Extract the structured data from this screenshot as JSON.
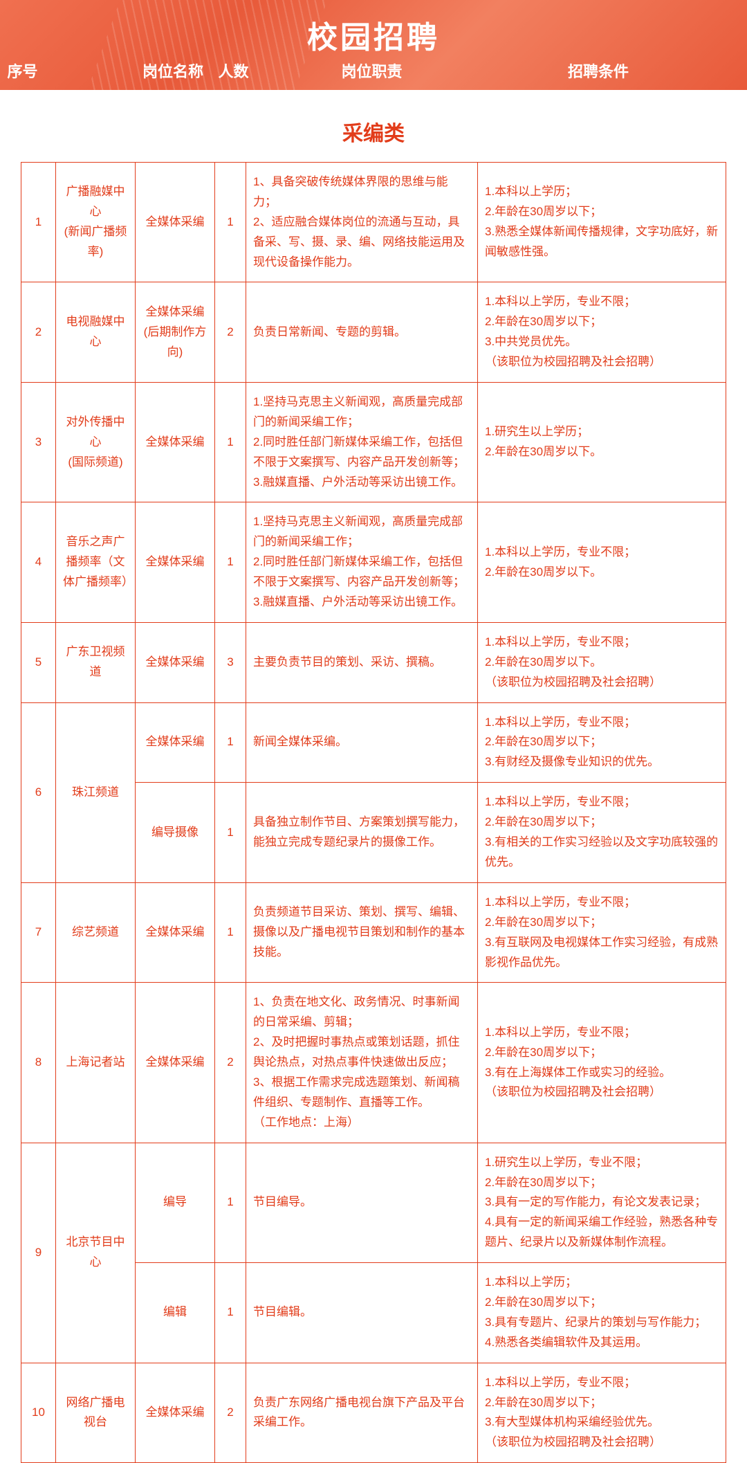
{
  "header": {
    "title": "校园招聘",
    "columns": [
      "序号",
      "岗位名称",
      "人数",
      "岗位职责",
      "招聘条件"
    ]
  },
  "category": "采编类",
  "colors": {
    "primary": "#e23c1a",
    "header_bg": "#e85a3a",
    "white": "#ffffff"
  },
  "rows": [
    {
      "seq": "1",
      "dept": "广播融媒中心\n(新闻广播频率)",
      "posts": [
        {
          "name": "全媒体采编",
          "count": "1",
          "duty": "1、具备突破传统媒体界限的思维与能力；\n2、适应融合媒体岗位的流通与互动，具备采、写、摄、录、编、网络技能运用及现代设备操作能力。",
          "req": "1.本科以上学历；\n2.年龄在30周岁以下；\n3.熟悉全媒体新闻传播规律，文字功底好，新闻敏感性强。"
        }
      ]
    },
    {
      "seq": "2",
      "dept": "电视融媒中心",
      "posts": [
        {
          "name": "全媒体采编\n(后期制作方向)",
          "count": "2",
          "duty": "负责日常新闻、专题的剪辑。",
          "req": "1.本科以上学历，专业不限；\n2.年龄在30周岁以下；\n3.中共党员优先。\n（该职位为校园招聘及社会招聘）"
        }
      ]
    },
    {
      "seq": "3",
      "dept": "对外传播中心\n(国际频道)",
      "posts": [
        {
          "name": "全媒体采编",
          "count": "1",
          "duty": "1.坚持马克思主义新闻观，高质量完成部门的新闻采编工作；\n2.同时胜任部门新媒体采编工作，包括但不限于文案撰写、内容产品开发创新等；\n3.融媒直播、户外活动等采访出镜工作。",
          "req": "1.研究生以上学历；\n2.年龄在30周岁以下。"
        }
      ]
    },
    {
      "seq": "4",
      "dept": "音乐之声广播频率（文体广播频率）",
      "posts": [
        {
          "name": "全媒体采编",
          "count": "1",
          "duty": "1.坚持马克思主义新闻观，高质量完成部门的新闻采编工作；\n2.同时胜任部门新媒体采编工作，包括但不限于文案撰写、内容产品开发创新等；\n3.融媒直播、户外活动等采访出镜工作。",
          "req": "1.本科以上学历，专业不限；\n2.年龄在30周岁以下。"
        }
      ]
    },
    {
      "seq": "5",
      "dept": "广东卫视频道",
      "posts": [
        {
          "name": "全媒体采编",
          "count": "3",
          "duty": "主要负责节目的策划、采访、撰稿。",
          "req": "1.本科以上学历，专业不限；\n2.年龄在30周岁以下。\n（该职位为校园招聘及社会招聘）"
        }
      ]
    },
    {
      "seq": "6",
      "dept": "珠江频道",
      "posts": [
        {
          "name": "全媒体采编",
          "count": "1",
          "duty": "新闻全媒体采编。",
          "req": "1.本科以上学历，专业不限；\n2.年龄在30周岁以下；\n3.有财经及摄像专业知识的优先。"
        },
        {
          "name": "编导摄像",
          "count": "1",
          "duty": "具备独立制作节目、方案策划撰写能力，能独立完成专题纪录片的摄像工作。",
          "req": "1.本科以上学历，专业不限；\n2.年龄在30周岁以下；\n3.有相关的工作实习经验以及文字功底较强的优先。"
        }
      ]
    },
    {
      "seq": "7",
      "dept": "综艺频道",
      "posts": [
        {
          "name": "全媒体采编",
          "count": "1",
          "duty": "负责频道节目采访、策划、撰写、编辑、摄像以及广播电视节目策划和制作的基本技能。",
          "req": "1.本科以上学历，专业不限；\n2.年龄在30周岁以下；\n3.有互联网及电视媒体工作实习经验，有成熟影视作品优先。"
        }
      ]
    },
    {
      "seq": "8",
      "dept": "上海记者站",
      "posts": [
        {
          "name": "全媒体采编",
          "count": "2",
          "duty": "1、负责在地文化、政务情况、时事新闻的日常采编、剪辑；\n2、及时把握时事热点或策划话题，抓住舆论热点，对热点事件快速做出反应；\n3、根据工作需求完成选题策划、新闻稿件组织、专题制作、直播等工作。\n（工作地点：上海）",
          "req": "1.本科以上学历，专业不限；\n2.年龄在30周岁以下；\n3.有在上海媒体工作或实习的经验。\n（该职位为校园招聘及社会招聘）"
        }
      ]
    },
    {
      "seq": "9",
      "dept": "北京节目中心",
      "posts": [
        {
          "name": "编导",
          "count": "1",
          "duty": "节目编导。",
          "req": "1.研究生以上学历，专业不限；\n2.年龄在30周岁以下；\n3.具有一定的写作能力，有论文发表记录；\n4.具有一定的新闻采编工作经验，熟悉各种专题片、纪录片以及新媒体制作流程。"
        },
        {
          "name": "编辑",
          "count": "1",
          "duty": "节目编辑。",
          "req": "1.本科以上学历；\n2.年龄在30周岁以下；\n3.具有专题片、纪录片的策划与写作能力；\n4.熟悉各类编辑软件及其运用。"
        }
      ]
    },
    {
      "seq": "10",
      "dept": "网络广播电视台",
      "posts": [
        {
          "name": "全媒体采编",
          "count": "2",
          "duty": "负责广东网络广播电视台旗下产品及平台采编工作。",
          "req": "1.本科以上学历，专业不限；\n2.年龄在30周岁以下；\n3.有大型媒体机构采编经验优先。\n（该职位为校园招聘及社会招聘）"
        }
      ]
    }
  ]
}
